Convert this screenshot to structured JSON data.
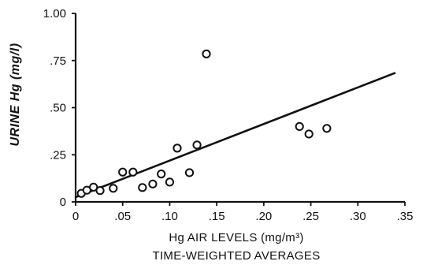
{
  "chart_data": {
    "type": "scatter",
    "xlabel": "Hg AIR LEVELS (mg/m³)",
    "xlabel_line2": "TIME-WEIGHTED AVERAGES",
    "ylabel": "URINE Hg (mg/l)",
    "xlim": [
      0,
      0.35
    ],
    "ylim": [
      0,
      1.0
    ],
    "x_ticks": [
      0,
      0.05,
      0.1,
      0.15,
      0.2,
      0.25,
      0.3,
      0.35
    ],
    "x_tick_labels": [
      "0",
      ".05",
      ".10",
      ".15",
      ".20",
      ".25",
      ".30",
      ".35"
    ],
    "y_ticks": [
      0,
      0.25,
      0.5,
      0.75,
      1.0
    ],
    "y_tick_labels": [
      "0",
      ".25",
      ".50",
      ".75",
      "1.00"
    ],
    "grid": false,
    "points": [
      {
        "x": 0.006,
        "y": 0.045
      },
      {
        "x": 0.012,
        "y": 0.062
      },
      {
        "x": 0.019,
        "y": 0.078
      },
      {
        "x": 0.026,
        "y": 0.06
      },
      {
        "x": 0.04,
        "y": 0.072
      },
      {
        "x": 0.05,
        "y": 0.158
      },
      {
        "x": 0.061,
        "y": 0.158
      },
      {
        "x": 0.071,
        "y": 0.076
      },
      {
        "x": 0.082,
        "y": 0.095
      },
      {
        "x": 0.091,
        "y": 0.148
      },
      {
        "x": 0.1,
        "y": 0.105
      },
      {
        "x": 0.108,
        "y": 0.285
      },
      {
        "x": 0.121,
        "y": 0.155
      },
      {
        "x": 0.129,
        "y": 0.302
      },
      {
        "x": 0.139,
        "y": 0.785
      },
      {
        "x": 0.238,
        "y": 0.4
      },
      {
        "x": 0.248,
        "y": 0.36
      },
      {
        "x": 0.267,
        "y": 0.39
      }
    ],
    "fit_line": {
      "x": [
        0.0,
        0.34
      ],
      "y": [
        0.025,
        0.685
      ]
    }
  }
}
